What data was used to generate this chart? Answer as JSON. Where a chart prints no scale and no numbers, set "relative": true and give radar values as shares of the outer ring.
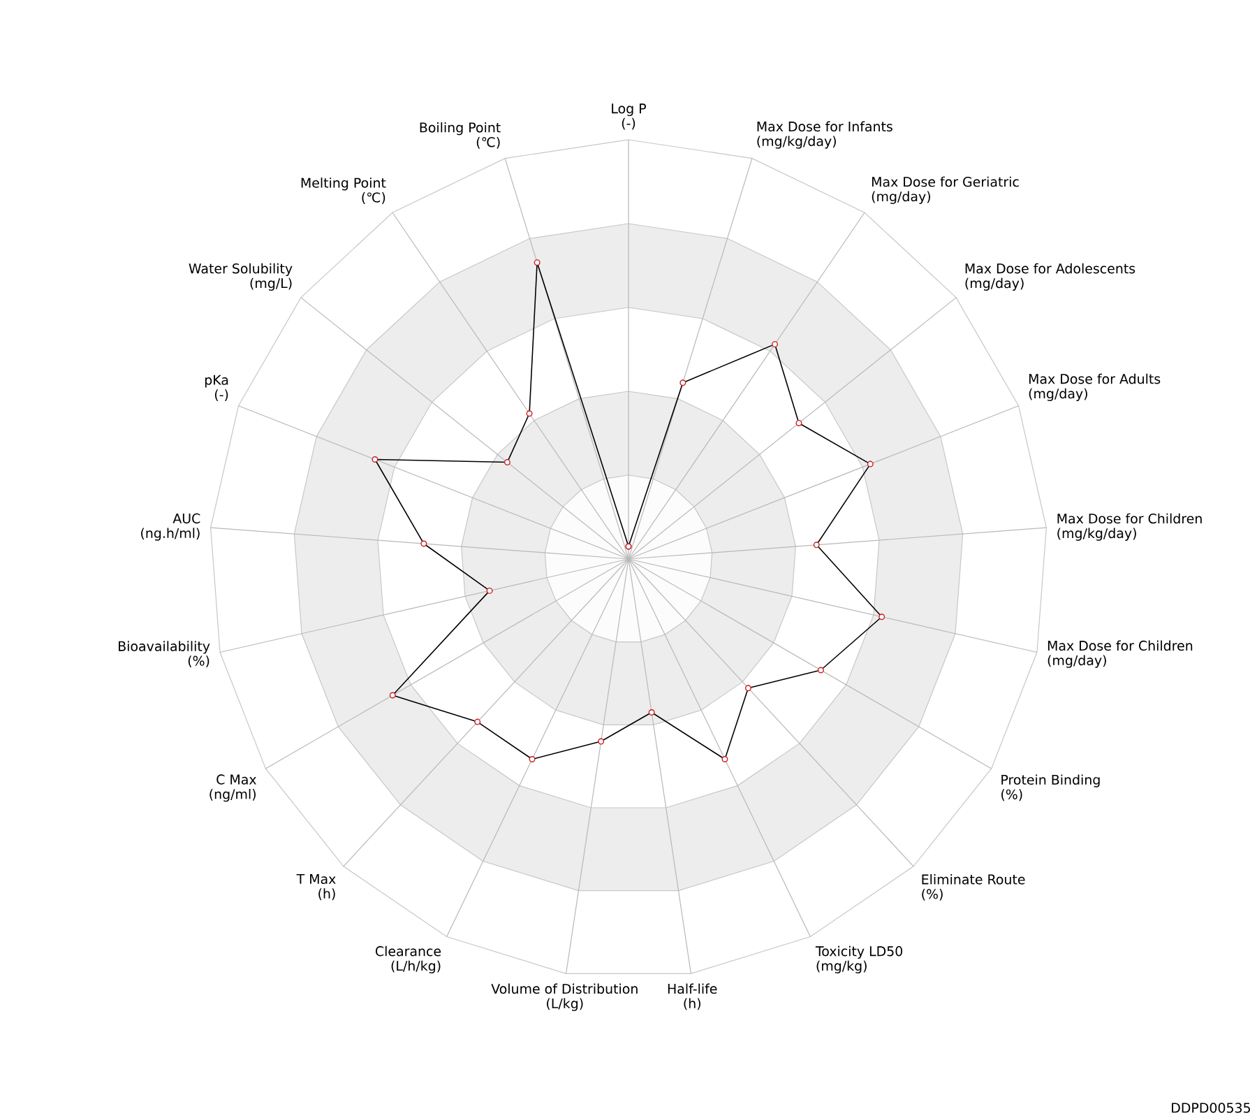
{
  "chart_data": {
    "type": "radar",
    "relative": true,
    "grid": true,
    "marker": "circle",
    "categories": [
      "Log P (-)",
      "Max Dose for Infants (mg/kg/day)",
      "Max Dose for Geriatric (mg/day)",
      "Max Dose for Adolescents (mg/day)",
      "Max Dose for Adults (mg/day)",
      "Max Dose for Children (mg/kg/day)",
      "Max Dose for Children (mg/day)",
      "Protein Binding (%)",
      "Eliminate Route (%)",
      "Toxicity LD50 (mg/kg)",
      "Half-life (h)",
      "Volume of Distribution (L/kg)",
      "Clearance (L/h/kg)",
      "T Max (h)",
      "C Max (ng/ml)",
      "Bioavailability (%)",
      "AUC (ng.h/ml)",
      "pKa (-)",
      "Water Solubility (mg/L)",
      "Melting Point (℃)",
      "Boiling Point (℃)"
    ],
    "series": [
      {
        "color": "#000000",
        "values": [
          0.03,
          0.44,
          0.62,
          0.52,
          0.62,
          0.45,
          0.62,
          0.53,
          0.42,
          0.53,
          0.37,
          0.44,
          0.53,
          0.53,
          0.65,
          0.34,
          0.49,
          0.65,
          0.37,
          0.42,
          0.74
        ]
      }
    ],
    "annotations": [
      "DDPD00535"
    ]
  }
}
